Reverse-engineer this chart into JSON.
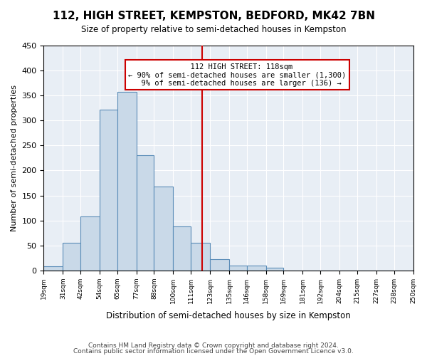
{
  "title": "112, HIGH STREET, KEMPSTON, BEDFORD, MK42 7BN",
  "subtitle": "Size of property relative to semi-detached houses in Kempston",
  "xlabel": "Distribution of semi-detached houses by size in Kempston",
  "ylabel": "Number of semi-detached properties",
  "footer1": "Contains HM Land Registry data © Crown copyright and database right 2024.",
  "footer2": "Contains public sector information licensed under the Open Government Licence v3.0.",
  "property_size": 118,
  "property_label": "112 HIGH STREET: 118sqm",
  "pct_smaller": 90,
  "count_smaller": 1300,
  "pct_larger": 9,
  "count_larger": 136,
  "bin_labels": [
    "19sqm",
    "31sqm",
    "42sqm",
    "54sqm",
    "65sqm",
    "77sqm",
    "88sqm",
    "100sqm",
    "111sqm",
    "123sqm",
    "135sqm",
    "146sqm",
    "158sqm",
    "169sqm",
    "181sqm",
    "192sqm",
    "204sqm",
    "215sqm",
    "227sqm",
    "238sqm",
    "250sqm"
  ],
  "bin_edges": [
    19,
    31,
    42,
    54,
    65,
    77,
    88,
    100,
    111,
    123,
    135,
    146,
    158,
    169,
    181,
    192,
    204,
    215,
    227,
    238,
    250
  ],
  "bar_heights": [
    8,
    55,
    108,
    322,
    358,
    231,
    168,
    88,
    55,
    22,
    10,
    10,
    5,
    0,
    0,
    0,
    0,
    0,
    0,
    0
  ],
  "bar_color": "#c9d9e8",
  "bar_edge_color": "#5b8db8",
  "vline_x": 118,
  "vline_color": "#cc0000",
  "annotation_box_color": "#cc0000",
  "background_color": "#e8eef5",
  "ylim": [
    0,
    450
  ],
  "yticks": [
    0,
    50,
    100,
    150,
    200,
    250,
    300,
    350,
    400,
    450
  ]
}
